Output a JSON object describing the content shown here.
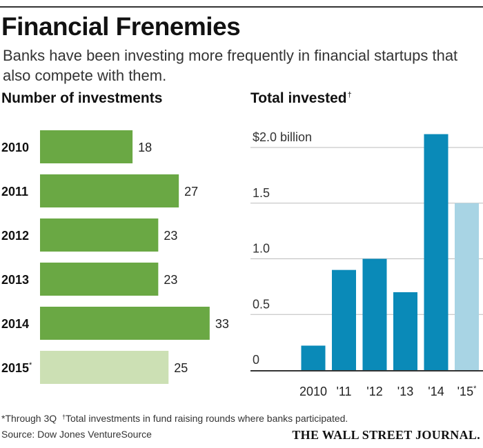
{
  "title": "Financial Frenemies",
  "subtitle": "Banks have been investing more frequently in financial startups that also compete with them.",
  "colors": {
    "left_bar": "#6aa844",
    "left_bar_partial": "#cce0b4",
    "right_bar": "#0a8ab8",
    "right_bar_partial": "#a8d4e4",
    "gridline": "#bbbbbb",
    "axis": "#333333"
  },
  "chart_data": [
    {
      "type": "bar",
      "orientation": "horizontal",
      "title": "Number of investments",
      "categories": [
        "2010",
        "2011",
        "2012",
        "2013",
        "2014",
        "2015"
      ],
      "category_marks": [
        "",
        "",
        "",
        "",
        "",
        "*"
      ],
      "values": [
        18,
        27,
        23,
        23,
        33,
        25
      ],
      "value_labels": [
        "18",
        "27",
        "23",
        "23",
        "33",
        "25"
      ],
      "partial": [
        false,
        false,
        false,
        false,
        false,
        true
      ],
      "grid": false
    },
    {
      "type": "bar",
      "title": "Total invested",
      "title_mark": "†",
      "categories": [
        "2010",
        "'11",
        "'12",
        "'13",
        "'14",
        "'15"
      ],
      "category_marks": [
        "",
        "",
        "",
        "",
        "",
        "*"
      ],
      "values": [
        0.22,
        0.9,
        1.0,
        0.7,
        2.12,
        1.5
      ],
      "partial": [
        false,
        false,
        false,
        false,
        false,
        true
      ],
      "ylim": [
        0,
        2.0
      ],
      "yticks": [
        0,
        0.5,
        1.0,
        1.5,
        2.0
      ],
      "ytick_labels": [
        "0",
        "0.5",
        "1.0",
        "1.5",
        "$2.0 billion"
      ],
      "grid": true
    }
  ],
  "footnote_star": "Through 3Q",
  "footnote_dagger": "Total investments in fund raising rounds where banks participated.",
  "source": "Source: Dow Jones VentureSource",
  "publisher": "THE WALL STREET JOURNAL."
}
